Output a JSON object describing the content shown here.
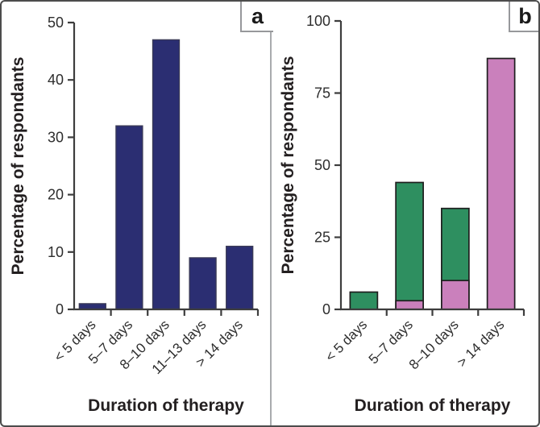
{
  "figure": {
    "background": "#ffffff",
    "border_color": "#4c4c4c",
    "divider_color": "#a9abae"
  },
  "panels": [
    {
      "label": "a"
    },
    {
      "label": "b"
    }
  ],
  "chart_data": [
    {
      "panel": "a",
      "type": "bar",
      "title": "",
      "categories": [
        "< 5 days",
        "5–7 days",
        "8–10 days",
        "11–13 days",
        "> 14 days"
      ],
      "values": [
        1,
        32,
        47,
        9,
        11
      ],
      "bar_color": "#2b2e72",
      "xlabel": "Duration of therapy",
      "ylabel": "Percentage of respondants",
      "ylim": [
        0,
        50
      ],
      "yticks": [
        0,
        10,
        20,
        30,
        40,
        50
      ],
      "grid": false,
      "legend": false
    },
    {
      "panel": "b",
      "type": "bar",
      "title": "",
      "categories": [
        "< 5 days",
        "5–7 days",
        "8–10 days",
        "> 14 days"
      ],
      "series": [
        {
          "name": "green-series",
          "color": "#2e8f60",
          "values": [
            6,
            44,
            35,
            0
          ]
        },
        {
          "name": "pink-series",
          "color": "#ca80bc",
          "values": [
            0,
            3,
            10,
            87
          ]
        }
      ],
      "series_note": "pink series drawn in front of green series (overlapping bars)",
      "xlabel": "Duration of therapy",
      "ylabel": "Percentage of respondants",
      "ylim": [
        0,
        100
      ],
      "yticks": [
        0,
        25,
        50,
        75,
        100
      ],
      "grid": false,
      "legend": false
    }
  ]
}
